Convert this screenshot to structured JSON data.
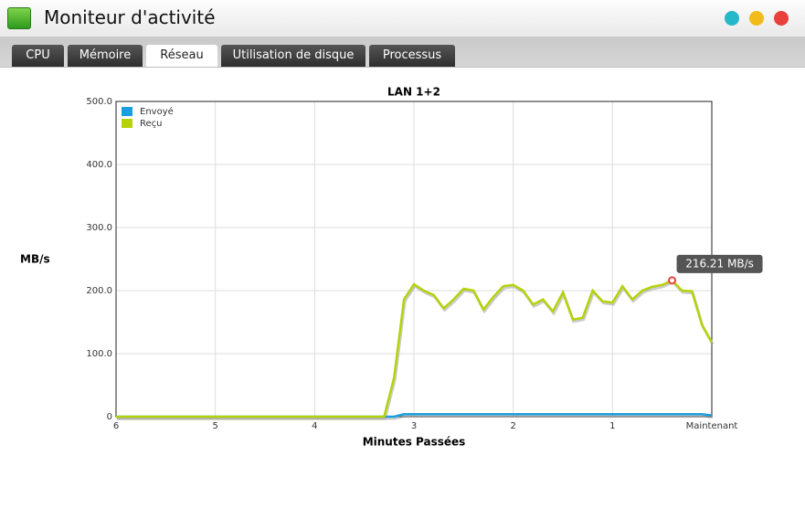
{
  "window": {
    "title": "Moniteur d'activité",
    "tabs": [
      "CPU",
      "Mémoire",
      "Réseau",
      "Utilisation de disque",
      "Processus"
    ]
  },
  "chart_data": {
    "type": "line",
    "title": "LAN 1+2",
    "y_label": "MB/s",
    "x_label": "Minutes Passées",
    "x": [
      6,
      5.9,
      5.8,
      5.7,
      5.6,
      5.5,
      5.4,
      5.3,
      5.2,
      5.1,
      5,
      4.9,
      4.8,
      4.7,
      4.6,
      4.5,
      4.4,
      4.3,
      4.2,
      4.1,
      4,
      3.9,
      3.8,
      3.7,
      3.6,
      3.5,
      3.4,
      3.3,
      3.2,
      3.1,
      3,
      2.9,
      2.8,
      2.7,
      2.6,
      2.5,
      2.4,
      2.3,
      2.2,
      2.1,
      2,
      1.9,
      1.8,
      1.7,
      1.6,
      1.5,
      1.4,
      1.3,
      1.2,
      1.1,
      1,
      0.9,
      0.8,
      0.7,
      0.6,
      0.5,
      0.4,
      0.3,
      0.2,
      0.1,
      0
    ],
    "series": [
      {
        "name": "Envoyé",
        "color": "#1a9fe0",
        "values": [
          0,
          0,
          0,
          0,
          0,
          0,
          0,
          0,
          0,
          0,
          0,
          0,
          0,
          0,
          0,
          0,
          0,
          0,
          0,
          0,
          0,
          0,
          0,
          0,
          0,
          0,
          0,
          0,
          0,
          4,
          4,
          4,
          4,
          4,
          4,
          4,
          4,
          4,
          4,
          4,
          4,
          4,
          4,
          4,
          4,
          4,
          4,
          4,
          4,
          4,
          4,
          4,
          4,
          4,
          4,
          4,
          4,
          4,
          4,
          4,
          2
        ]
      },
      {
        "name": "Reçu",
        "color": "#b5d20a",
        "values": [
          0,
          0,
          0,
          0,
          0,
          0,
          0,
          0,
          0,
          0,
          0,
          0,
          0,
          0,
          0,
          0,
          0,
          0,
          0,
          0,
          0,
          0,
          0,
          0,
          0,
          0,
          0,
          0,
          62,
          186,
          210,
          200,
          193,
          172,
          186,
          203,
          200,
          170,
          190,
          207,
          209,
          200,
          178,
          186,
          167,
          197,
          154,
          157,
          200,
          183,
          181,
          207,
          186,
          200,
          206,
          209,
          216.21,
          200,
          199,
          146,
          118
        ]
      }
    ],
    "xlim": [
      6,
      0
    ],
    "xticks": [
      6,
      5,
      4,
      3,
      2,
      1,
      {
        "value": 0,
        "label": "Maintenant"
      }
    ],
    "ylim": [
      0,
      500
    ],
    "yticks": [
      0,
      {
        "value": 100,
        "label": "100.0"
      },
      {
        "value": 200,
        "label": "200.0"
      },
      {
        "value": 300,
        "label": "300.0"
      },
      {
        "value": 400,
        "label": "400.0"
      },
      {
        "value": 500,
        "label": "500.0"
      }
    ],
    "grid": true,
    "legend": "top-left",
    "tooltip": {
      "label": "216.21 MB/s",
      "x": 0.4,
      "value": 216.21
    }
  }
}
